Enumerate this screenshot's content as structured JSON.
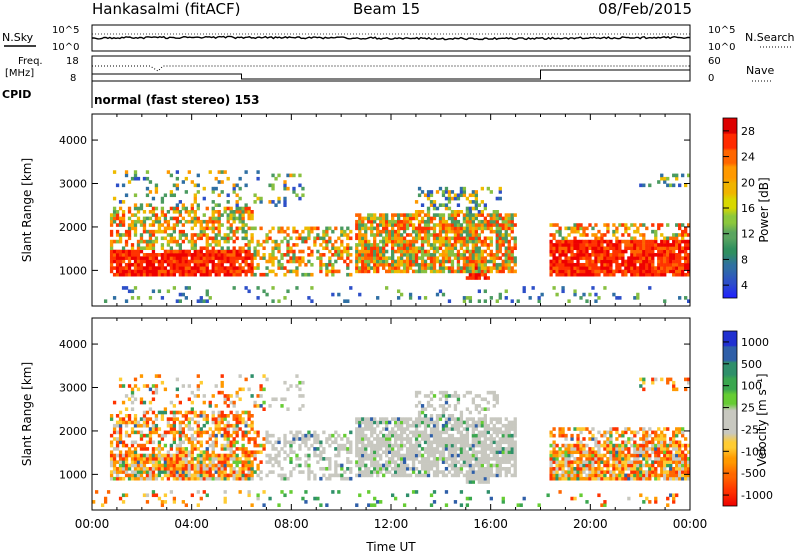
{
  "header": {
    "station": "Hankasalmi (fitACF)",
    "beam": "Beam 15",
    "date": "08/Feb/2015"
  },
  "panels": {
    "noise": {
      "left_label": "N.Sky",
      "right_label": "N.Search",
      "left_ticks": [
        "10^5",
        "10^0"
      ],
      "right_ticks": [
        "10^5",
        "10^0"
      ]
    },
    "freq": {
      "left_label_top": "Freq.",
      "left_label_bottom": "[MHz]",
      "right_label": "Nave",
      "left_ticks": [
        "18",
        "8"
      ],
      "right_ticks": [
        "60",
        "0"
      ]
    },
    "cpid": {
      "label": "CPID",
      "value": "normal (fast stereo) 153"
    }
  },
  "chart_data": [
    {
      "type": "heatmap",
      "name": "power",
      "ylabel": "Slant Range [km]",
      "xlabel": "",
      "x_ticks": [
        "00:00",
        "04:00",
        "08:00",
        "12:00",
        "16:00",
        "20:00",
        "00:00"
      ],
      "x_range_hours": [
        0,
        24
      ],
      "y_ticks": [
        1000,
        2000,
        3000,
        4000
      ],
      "ylim": [
        180,
        4600
      ],
      "colorbar": {
        "label": "Power [dB]",
        "ticks": [
          "28",
          "24",
          "20",
          "16",
          "12",
          "8",
          "4"
        ],
        "colors": [
          "#dd0000",
          "#ff2a00",
          "#ff6600",
          "#ff9900",
          "#f0b400",
          "#d8d800",
          "#8cc83c",
          "#5aa560",
          "#2f8f5f",
          "#2f6fa3",
          "#2d4fc8",
          "#2020ff"
        ]
      }
    },
    {
      "type": "heatmap",
      "name": "velocity",
      "ylabel": "Slant Range [km]",
      "xlabel": "Time UT",
      "x_ticks": [
        "00:00",
        "04:00",
        "08:00",
        "12:00",
        "16:00",
        "20:00",
        "00:00"
      ],
      "x_range_hours": [
        0,
        24
      ],
      "y_ticks": [
        1000,
        2000,
        3000,
        4000
      ],
      "ylim": [
        180,
        4600
      ],
      "colorbar": {
        "label": "Velocity [m s⁻¹]",
        "ticks": [
          "1000",
          "500",
          "100",
          "25",
          "-25",
          "-100",
          "-500",
          "-1000"
        ],
        "colors": [
          "#2030d0",
          "#2f5fa8",
          "#2f8f6a",
          "#3aa64f",
          "#66cc33",
          "#c8c8c0",
          "#c8c8c0",
          "#ffcc33",
          "#ff9900",
          "#ff6600",
          "#ff3300",
          "#ee0000"
        ]
      }
    }
  ]
}
